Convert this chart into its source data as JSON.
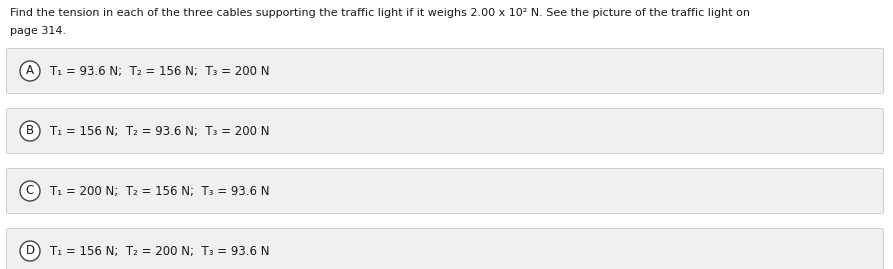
{
  "question_line1": "Find the tension in each of the three cables supporting the traffic light if it weighs 2.00 x 10² N. See the picture of the traffic light on",
  "question_line2": "page 314.",
  "options": [
    {
      "label": "A",
      "text": "T₁ = 93.6 N;  T₂ = 156 N;  T₃ = 200 N"
    },
    {
      "label": "B",
      "text": "T₁ = 156 N;  T₂ = 93.6 N;  T₃ = 200 N"
    },
    {
      "label": "C",
      "text": "T₁ = 200 N;  T₂ = 156 N;  T₃ = 93.6 N"
    },
    {
      "label": "D",
      "text": "T₁ = 156 N;  T₂ = 200 N;  T₃ = 93.6 N"
    }
  ],
  "bg_color": "#ffffff",
  "option_bg_color": "#f0f0f0",
  "text_color": "#1a1a1a",
  "circle_edge_color": "#444444",
  "font_size_question": 8.0,
  "font_size_option": 8.5,
  "font_size_label": 8.5
}
